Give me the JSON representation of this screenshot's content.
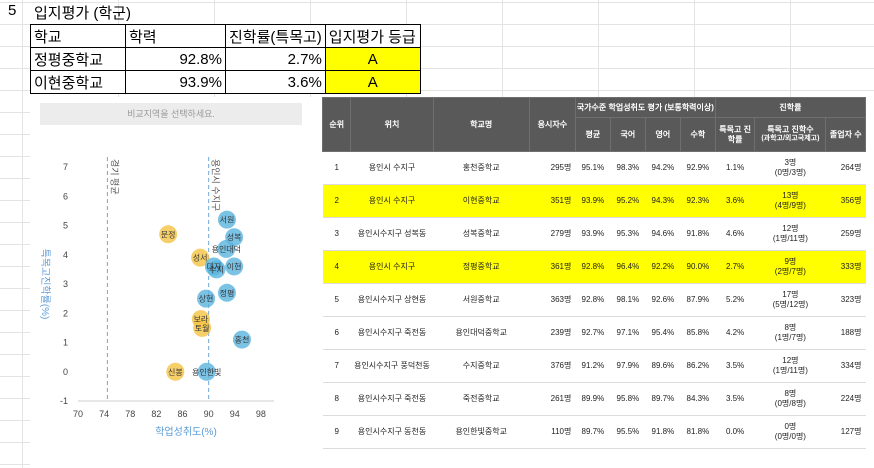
{
  "sheet": {
    "row_number": "5",
    "title": "입지평가 (학군)"
  },
  "summary": {
    "headers": [
      "학교",
      "학력",
      "진학률(특목고)",
      "입지평가 등급"
    ],
    "rows": [
      {
        "school": "정평중학교",
        "score": "92.8%",
        "rate": "2.7%",
        "grade": "A"
      },
      {
        "school": "이현중학교",
        "score": "93.9%",
        "rate": "3.6%",
        "grade": "A"
      }
    ]
  },
  "chart": {
    "selector_text": "비교지역을 선택하세요.",
    "refline_labels": {
      "left": "경기 평균",
      "right": "용인시 수지구"
    },
    "colors": {
      "blue": "#5ab4de",
      "yellow": "#f5c342",
      "ref": "#6fa8dc",
      "axis_label": "#5b9bd5"
    }
  },
  "chart_data": {
    "type": "scatter",
    "xlabel": "학업성취도(%)",
    "ylabel": "특목고진학률(%)",
    "xlim": [
      70,
      100
    ],
    "ylim": [
      -1,
      7
    ],
    "xticks": [
      "70",
      "74",
      "78",
      "82",
      "86",
      "90",
      "94",
      "98"
    ],
    "yticks": [
      "-1",
      "0",
      "1",
      "2",
      "3",
      "4",
      "5",
      "6",
      "7"
    ],
    "reference_lines": [
      {
        "x": 74.5
      },
      {
        "x": 90.0
      }
    ],
    "points": [
      {
        "label": "서원",
        "x": 92.8,
        "y": 5.2,
        "color": "blue"
      },
      {
        "label": "성복",
        "x": 93.9,
        "y": 4.6,
        "color": "blue"
      },
      {
        "label": "용인대덕",
        "x": 92.7,
        "y": 4.2,
        "color": "blue"
      },
      {
        "label": "문정",
        "x": 83.8,
        "y": 4.7,
        "color": "yellow"
      },
      {
        "label": "이현",
        "x": 93.9,
        "y": 3.6,
        "color": "blue"
      },
      {
        "label": "성서",
        "x": 88.7,
        "y": 3.9,
        "color": "yellow"
      },
      {
        "label": "대지",
        "x": 90.8,
        "y": 3.6,
        "color": "blue"
      },
      {
        "label": "수지",
        "x": 91.2,
        "y": 3.5,
        "color": "blue"
      },
      {
        "label": "정평",
        "x": 92.8,
        "y": 2.7,
        "color": "blue"
      },
      {
        "label": "상현",
        "x": 89.6,
        "y": 2.5,
        "color": "blue"
      },
      {
        "label": "보라",
        "x": 88.8,
        "y": 1.8,
        "color": "yellow"
      },
      {
        "label": "토월",
        "x": 89.0,
        "y": 1.5,
        "color": "yellow"
      },
      {
        "label": "홍천",
        "x": 95.1,
        "y": 1.1,
        "color": "blue"
      },
      {
        "label": "신봉",
        "x": 84.9,
        "y": 0.0,
        "color": "yellow"
      },
      {
        "label": "용인한빛",
        "x": 89.7,
        "y": 0.0,
        "color": "blue"
      }
    ]
  },
  "big_table": {
    "headers": {
      "rank": "순위",
      "location": "위치",
      "school": "학교명",
      "applicants": "응시자수",
      "group_achievement": "국가수준 학업성취도 평가 (보통학력이상)",
      "avg": "평균",
      "korean": "국어",
      "english": "영어",
      "math": "수학",
      "group_advance": "진학률",
      "special_rate": "특목고 진학률",
      "special_count": "특목고 진학수",
      "special_count_sub": "(과학고/외고국제고)",
      "graduates": "졸업자 수"
    },
    "rows": [
      {
        "rank": "1",
        "location": "용인시 수지구",
        "school": "홍천중학교",
        "applicants": "295명",
        "avg": "95.1%",
        "korean": "98.3%",
        "english": "94.2%",
        "math": "92.9%",
        "special_rate": "1.1%",
        "count": "3명",
        "detail": "(0명/3명)",
        "graduates": "264명",
        "highlight": false
      },
      {
        "rank": "2",
        "location": "용인시 수지구",
        "school": "이현중학교",
        "applicants": "351명",
        "avg": "93.9%",
        "korean": "95.2%",
        "english": "94.3%",
        "math": "92.3%",
        "special_rate": "3.6%",
        "count": "13명",
        "detail": "(4명/9명)",
        "graduates": "356명",
        "highlight": true
      },
      {
        "rank": "3",
        "location": "용인시수지구 성복동",
        "school": "성복중학교",
        "applicants": "279명",
        "avg": "93.9%",
        "korean": "95.3%",
        "english": "94.6%",
        "math": "91.8%",
        "special_rate": "4.6%",
        "count": "12명",
        "detail": "(1명/11명)",
        "graduates": "259명",
        "highlight": false
      },
      {
        "rank": "4",
        "location": "용인시 수지구",
        "school": "정평중학교",
        "applicants": "361명",
        "avg": "92.8%",
        "korean": "96.4%",
        "english": "92.2%",
        "math": "90.0%",
        "special_rate": "2.7%",
        "count": "9명",
        "detail": "(2명/7명)",
        "graduates": "333명",
        "highlight": true
      },
      {
        "rank": "5",
        "location": "용인시수지구 상현동",
        "school": "서원중학교",
        "applicants": "363명",
        "avg": "92.8%",
        "korean": "98.1%",
        "english": "92.6%",
        "math": "87.9%",
        "special_rate": "5.2%",
        "count": "17명",
        "detail": "(5명/12명)",
        "graduates": "323명",
        "highlight": false
      },
      {
        "rank": "6",
        "location": "용인시수지구 죽전동",
        "school": "용인대덕중학교",
        "applicants": "239명",
        "avg": "92.7%",
        "korean": "97.1%",
        "english": "95.4%",
        "math": "85.8%",
        "special_rate": "4.2%",
        "count": "8명",
        "detail": "(1명/7명)",
        "graduates": "188명",
        "highlight": false
      },
      {
        "rank": "7",
        "location": "용인시수지구 풍덕천동",
        "school": "수지중학교",
        "applicants": "376명",
        "avg": "91.2%",
        "korean": "97.9%",
        "english": "89.6%",
        "math": "86.2%",
        "special_rate": "3.5%",
        "count": "12명",
        "detail": "(1명/11명)",
        "graduates": "334명",
        "highlight": false
      },
      {
        "rank": "8",
        "location": "용인시수지구 죽전동",
        "school": "죽전중학교",
        "applicants": "261명",
        "avg": "89.9%",
        "korean": "95.8%",
        "english": "89.7%",
        "math": "84.3%",
        "special_rate": "3.5%",
        "count": "8명",
        "detail": "(0명/8명)",
        "graduates": "224명",
        "highlight": false
      },
      {
        "rank": "9",
        "location": "용인시수지구 동천동",
        "school": "용인한빛중학교",
        "applicants": "110명",
        "avg": "89.7%",
        "korean": "95.5%",
        "english": "91.8%",
        "math": "81.8%",
        "special_rate": "0.0%",
        "count": "0명",
        "detail": "(0명/0명)",
        "graduates": "127명",
        "highlight": false
      }
    ]
  }
}
